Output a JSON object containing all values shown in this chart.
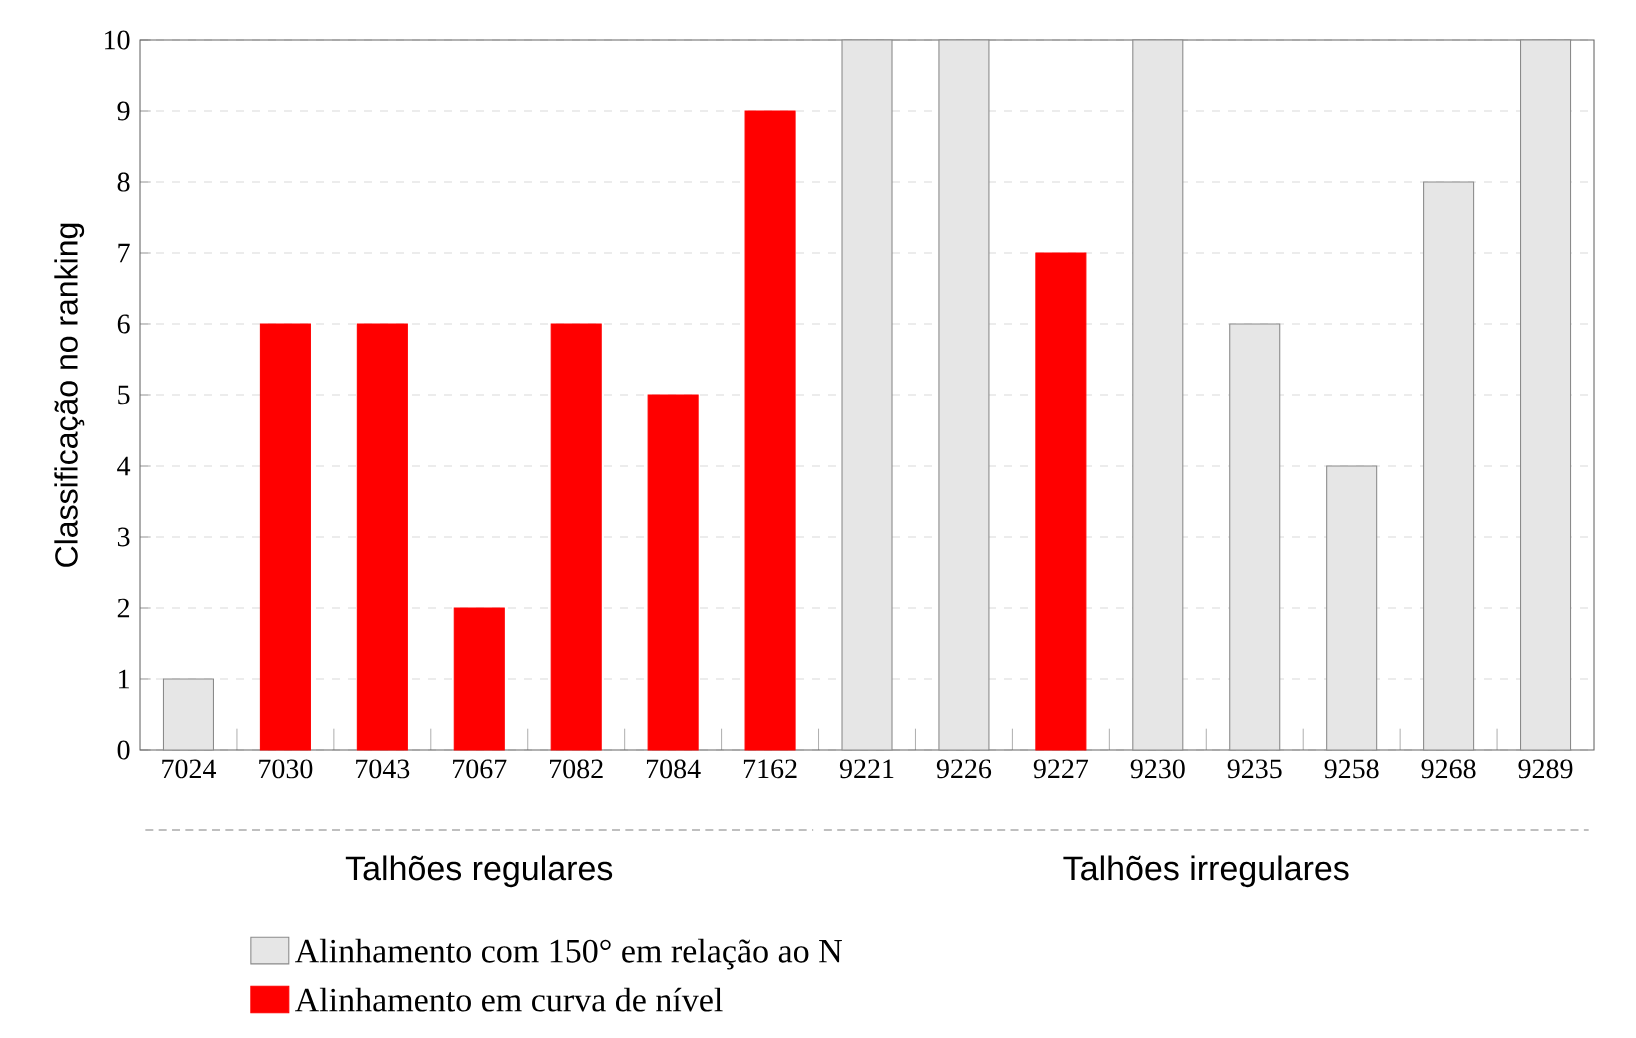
{
  "chart_data": {
    "type": "bar",
    "ylabel": "Classificação no ranking",
    "categories": [
      "7024",
      "7030",
      "7043",
      "7067",
      "7082",
      "7084",
      "7162",
      "9221",
      "9226",
      "9227",
      "9230",
      "9235",
      "9258",
      "9268",
      "9289"
    ],
    "series": [
      {
        "name": "Alinhamento com 150° em relação ao N",
        "color": "#e6e6e6",
        "values": [
          1,
          null,
          null,
          null,
          null,
          null,
          null,
          10,
          10,
          null,
          10,
          6,
          4,
          8,
          10
        ]
      },
      {
        "name": "Alinhamento em curva de nível",
        "color": "#ff0000",
        "values": [
          null,
          6,
          6,
          2,
          6,
          5,
          9,
          null,
          null,
          7,
          null,
          null,
          null,
          null,
          null
        ]
      }
    ],
    "ylim": [
      0,
      10
    ],
    "yticks": [
      0,
      1,
      2,
      3,
      4,
      5,
      6,
      7,
      8,
      9,
      10
    ],
    "grid": "y",
    "legend": "bottom",
    "annotations": [
      "Talhões regulares",
      "Talhões irregulares"
    ]
  }
}
